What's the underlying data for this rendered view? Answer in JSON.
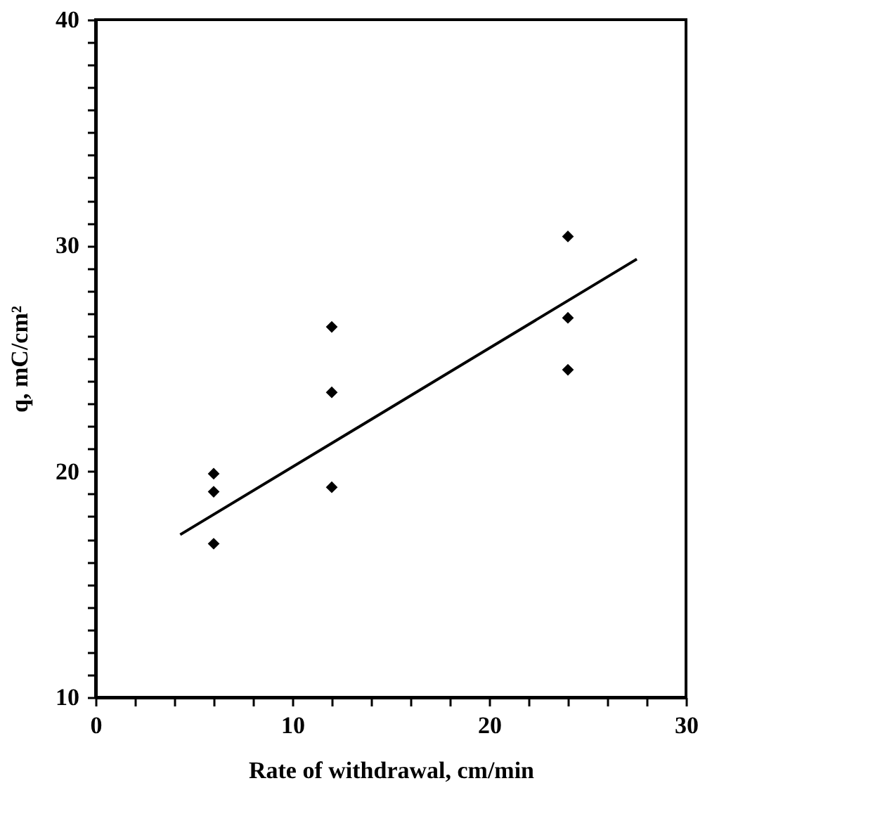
{
  "chart_data": {
    "type": "scatter",
    "xlabel": "Rate of withdrawal, cm/min",
    "ylabel": "q, mC/cm²",
    "xlim": [
      0,
      30
    ],
    "ylim": [
      10,
      40
    ],
    "xticks": [
      0,
      {
        "value": 2,
        "label": null
      },
      {
        "value": 4,
        "label": null
      },
      {
        "value": 6,
        "label": null
      },
      {
        "value": 8,
        "label": null
      },
      10,
      {
        "value": 12,
        "label": null
      },
      {
        "value": 14,
        "label": null
      },
      {
        "value": 16,
        "label": null
      },
      {
        "value": 18,
        "label": null
      },
      20,
      {
        "value": 22,
        "label": null
      },
      {
        "value": 24,
        "label": null
      },
      {
        "value": 26,
        "label": null
      },
      {
        "value": 28,
        "label": null
      },
      30
    ],
    "yticks": [
      10,
      {
        "value": 11,
        "label": null
      },
      {
        "value": 12,
        "label": null
      },
      {
        "value": 13,
        "label": null
      },
      {
        "value": 14,
        "label": null
      },
      {
        "value": 15,
        "label": null
      },
      {
        "value": 16,
        "label": null
      },
      {
        "value": 17,
        "label": null
      },
      {
        "value": 18,
        "label": null
      },
      {
        "value": 19,
        "label": null
      },
      20,
      {
        "value": 21,
        "label": null
      },
      {
        "value": 22,
        "label": null
      },
      {
        "value": 23,
        "label": null
      },
      {
        "value": 24,
        "label": null
      },
      {
        "value": 25,
        "label": null
      },
      {
        "value": 26,
        "label": null
      },
      {
        "value": 27,
        "label": null
      },
      {
        "value": 28,
        "label": null
      },
      {
        "value": 29,
        "label": null
      },
      30,
      {
        "value": 31,
        "label": null
      },
      {
        "value": 32,
        "label": null
      },
      {
        "value": 33,
        "label": null
      },
      {
        "value": 34,
        "label": null
      },
      {
        "value": 35,
        "label": null
      },
      {
        "value": 36,
        "label": null
      },
      {
        "value": 37,
        "label": null
      },
      {
        "value": 38,
        "label": null
      },
      {
        "value": 39,
        "label": null
      },
      40
    ],
    "grid": false,
    "series": [
      {
        "color": "#000000",
        "marker": "diamond",
        "x": [
          6,
          6,
          6,
          12,
          12,
          12,
          24,
          24,
          24
        ],
        "values": [
          19.9,
          19.1,
          16.8,
          26.4,
          23.5,
          19.3,
          30.4,
          26.8,
          24.5
        ]
      },
      {
        "type": "line",
        "color": "#000000",
        "line_style": "solid",
        "x": [
          4.3,
          27.5
        ],
        "values": [
          17.2,
          29.4
        ]
      }
    ]
  }
}
